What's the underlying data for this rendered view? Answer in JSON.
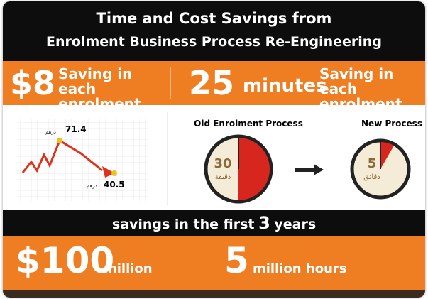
{
  "header": {
    "title_line_1": "Time and Cost Savings from",
    "title_line_2": "Enrolment Business Process Re-Engineering"
  },
  "cost_saving": {
    "value": "$8",
    "caption": "Saving in each enrolment"
  },
  "time_saving": {
    "value": "25",
    "unit": "minutes",
    "caption": "Saving in each enrolment"
  },
  "chart": {
    "high": {
      "value": "71.4",
      "currency": "درهم"
    },
    "low": {
      "value": "40.5",
      "currency": "درهم"
    }
  },
  "clocks": {
    "old": {
      "label": "Old Enrolment Process",
      "minutes": "30",
      "unit": "دقيقة"
    },
    "new": {
      "label": "New Process",
      "minutes": "5",
      "unit": "دقائق"
    }
  },
  "savings": {
    "heading": {
      "before": "savings in the first",
      "years": "3",
      "after": "years"
    },
    "money": {
      "value": "$100",
      "unit": "million"
    },
    "hours": {
      "value": "5",
      "unit": "million hours"
    }
  }
}
